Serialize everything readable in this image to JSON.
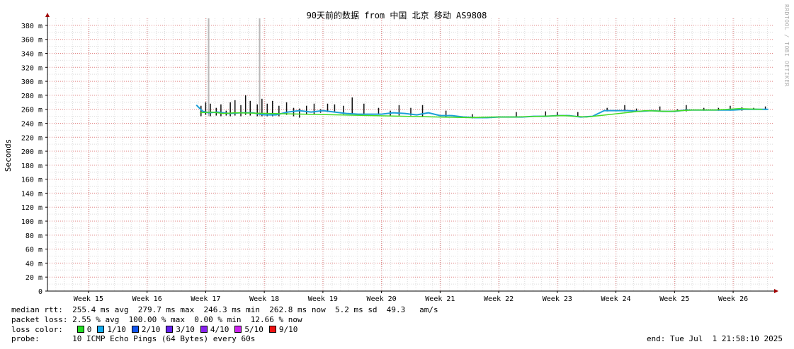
{
  "chart_data": {
    "type": "line",
    "title": "90天前的数据 from 中国 北京 移动 AS9808",
    "ylabel": "Seconds",
    "ylim": [
      0,
      0.39
    ],
    "yticks": [
      {
        "v": 0,
        "label": "0"
      },
      {
        "v": 0.02,
        "label": "20 m"
      },
      {
        "v": 0.04,
        "label": "40 m"
      },
      {
        "v": 0.06,
        "label": "60 m"
      },
      {
        "v": 0.08,
        "label": "80 m"
      },
      {
        "v": 0.1,
        "label": "100 m"
      },
      {
        "v": 0.12,
        "label": "120 m"
      },
      {
        "v": 0.14,
        "label": "140 m"
      },
      {
        "v": 0.16,
        "label": "160 m"
      },
      {
        "v": 0.18,
        "label": "180 m"
      },
      {
        "v": 0.2,
        "label": "200 m"
      },
      {
        "v": 0.22,
        "label": "220 m"
      },
      {
        "v": 0.24,
        "label": "240 m"
      },
      {
        "v": 0.26,
        "label": "260 m"
      },
      {
        "v": 0.28,
        "label": "280 m"
      },
      {
        "v": 0.3,
        "label": "300 m"
      },
      {
        "v": 0.32,
        "label": "320 m"
      },
      {
        "v": 0.34,
        "label": "340 m"
      },
      {
        "v": 0.36,
        "label": "360 m"
      },
      {
        "v": 0.38,
        "label": "380 m"
      }
    ],
    "xlim": [
      14.3,
      26.7
    ],
    "xticks": [
      {
        "v": 15,
        "label": "Week 15"
      },
      {
        "v": 16,
        "label": "Week 16"
      },
      {
        "v": 17,
        "label": "Week 17"
      },
      {
        "v": 18,
        "label": "Week 18"
      },
      {
        "v": 19,
        "label": "Week 19"
      },
      {
        "v": 20,
        "label": "Week 20"
      },
      {
        "v": 21,
        "label": "Week 21"
      },
      {
        "v": 22,
        "label": "Week 22"
      },
      {
        "v": 23,
        "label": "Week 23"
      },
      {
        "v": 24,
        "label": "Week 24"
      },
      {
        "v": 25,
        "label": "Week 25"
      },
      {
        "v": 26,
        "label": "Week 26"
      }
    ],
    "grid": true,
    "series": [
      {
        "color": "#1ca0d8",
        "x": [
          16.84,
          16.95,
          17.05,
          17.2,
          17.4,
          17.6,
          17.8,
          18.0,
          18.2,
          18.4,
          18.6,
          18.8,
          19.0,
          19.2,
          19.4,
          19.6,
          19.8,
          20.0,
          20.2,
          20.4,
          20.6,
          20.8,
          21.0,
          21.2,
          21.4,
          21.6,
          21.8,
          22.0,
          22.2,
          22.4,
          22.6,
          22.8,
          23.0,
          23.2,
          23.4,
          23.6,
          23.8,
          24.0,
          24.2,
          24.4,
          24.6,
          24.8,
          25.0,
          25.2,
          25.4,
          25.6,
          25.8,
          26.0,
          26.2,
          26.4,
          26.6
        ],
        "y": [
          0.266,
          0.257,
          0.255,
          0.256,
          0.254,
          0.255,
          0.255,
          0.252,
          0.252,
          0.256,
          0.258,
          0.256,
          0.258,
          0.256,
          0.254,
          0.253,
          0.253,
          0.253,
          0.255,
          0.254,
          0.252,
          0.255,
          0.251,
          0.251,
          0.249,
          0.248,
          0.248,
          0.249,
          0.249,
          0.249,
          0.25,
          0.25,
          0.251,
          0.251,
          0.249,
          0.25,
          0.258,
          0.258,
          0.258,
          0.257,
          0.258,
          0.257,
          0.257,
          0.259,
          0.259,
          0.259,
          0.259,
          0.259,
          0.26,
          0.26,
          0.26
        ]
      },
      {
        "color": "#44dd22",
        "x": [
          16.9,
          17.1,
          17.3,
          17.5,
          21.5,
          21.9,
          22.3,
          22.7,
          23.1,
          23.5,
          24.5,
          24.9,
          25.3,
          25.7,
          26.1,
          26.5
        ],
        "y": [
          0.255,
          0.256,
          0.254,
          0.255,
          0.248,
          0.249,
          0.249,
          0.25,
          0.251,
          0.249,
          0.258,
          0.257,
          0.259,
          0.259,
          0.261,
          0.26
        ]
      }
    ],
    "spikes": {
      "color": "#111111",
      "x": [
        16.92,
        17.0,
        17.08,
        17.18,
        17.26,
        17.35,
        17.42,
        17.5,
        17.6,
        17.68,
        17.76,
        17.88,
        17.96,
        18.05,
        18.14,
        18.25,
        18.38,
        18.5,
        18.6,
        18.72,
        18.85,
        18.96,
        19.08,
        19.2,
        19.35,
        19.5,
        19.7,
        19.95,
        20.15,
        20.3,
        20.5,
        20.7,
        21.1,
        21.55,
        22.3,
        22.8,
        23.0,
        23.35,
        23.85,
        24.15,
        24.35,
        24.75,
        25.05,
        25.2,
        25.5,
        25.75,
        25.95,
        26.15,
        26.35,
        26.55
      ],
      "low": [
        0.25,
        0.252,
        0.25,
        0.251,
        0.25,
        0.251,
        0.25,
        0.251,
        0.25,
        0.252,
        0.251,
        0.25,
        0.25,
        0.25,
        0.25,
        0.25,
        0.252,
        0.25,
        0.248,
        0.252,
        0.253,
        0.255,
        0.256,
        0.257,
        0.253,
        0.253,
        0.252,
        0.252,
        0.25,
        0.251,
        0.251,
        0.25,
        0.249,
        0.247,
        0.249,
        0.25,
        0.25,
        0.249,
        0.257,
        0.257,
        0.257,
        0.257,
        0.257,
        0.257,
        0.258,
        0.258,
        0.258,
        0.258,
        0.259,
        0.259
      ],
      "high": [
        0.265,
        0.27,
        0.268,
        0.262,
        0.267,
        0.258,
        0.27,
        0.273,
        0.266,
        0.28,
        0.272,
        0.267,
        0.275,
        0.268,
        0.272,
        0.265,
        0.27,
        0.262,
        0.261,
        0.265,
        0.268,
        0.26,
        0.268,
        0.267,
        0.265,
        0.277,
        0.268,
        0.262,
        0.258,
        0.266,
        0.262,
        0.266,
        0.258,
        0.253,
        0.256,
        0.257,
        0.256,
        0.256,
        0.262,
        0.266,
        0.261,
        0.264,
        0.26,
        0.266,
        0.262,
        0.262,
        0.265,
        0.263,
        0.262,
        0.264
      ]
    },
    "grey_bars": [
      {
        "x": 17.05,
        "high": 0.39
      },
      {
        "x": 17.92,
        "high": 0.39
      }
    ]
  },
  "legend": {
    "median_rtt": "median rtt:  255.4 ms avg  279.7 ms max  246.3 ms min  262.8 ms now  5.2 ms sd  49.3   am/s",
    "packet_loss": "packet loss: 2.55 % avg  100.00 % max  0.00 % min  12.66 % now",
    "loss_color_label": "loss color:",
    "loss_items": [
      {
        "label": "0",
        "color": "#22dd22"
      },
      {
        "label": "1/10",
        "color": "#11aaee"
      },
      {
        "label": "2/10",
        "color": "#1155ee"
      },
      {
        "label": "3/10",
        "color": "#6622ee"
      },
      {
        "label": "4/10",
        "color": "#8822ee"
      },
      {
        "label": "5/10",
        "color": "#cc22ee"
      },
      {
        "label": "9/10",
        "color": "#ee1111"
      }
    ],
    "probe": "probe:       10 ICMP Echo Pings (64 Bytes) every 60s",
    "end": "end: Tue Jul  1 21:58:10 2025"
  },
  "watermark": "RRDTOOL / TOBI OETIKER"
}
